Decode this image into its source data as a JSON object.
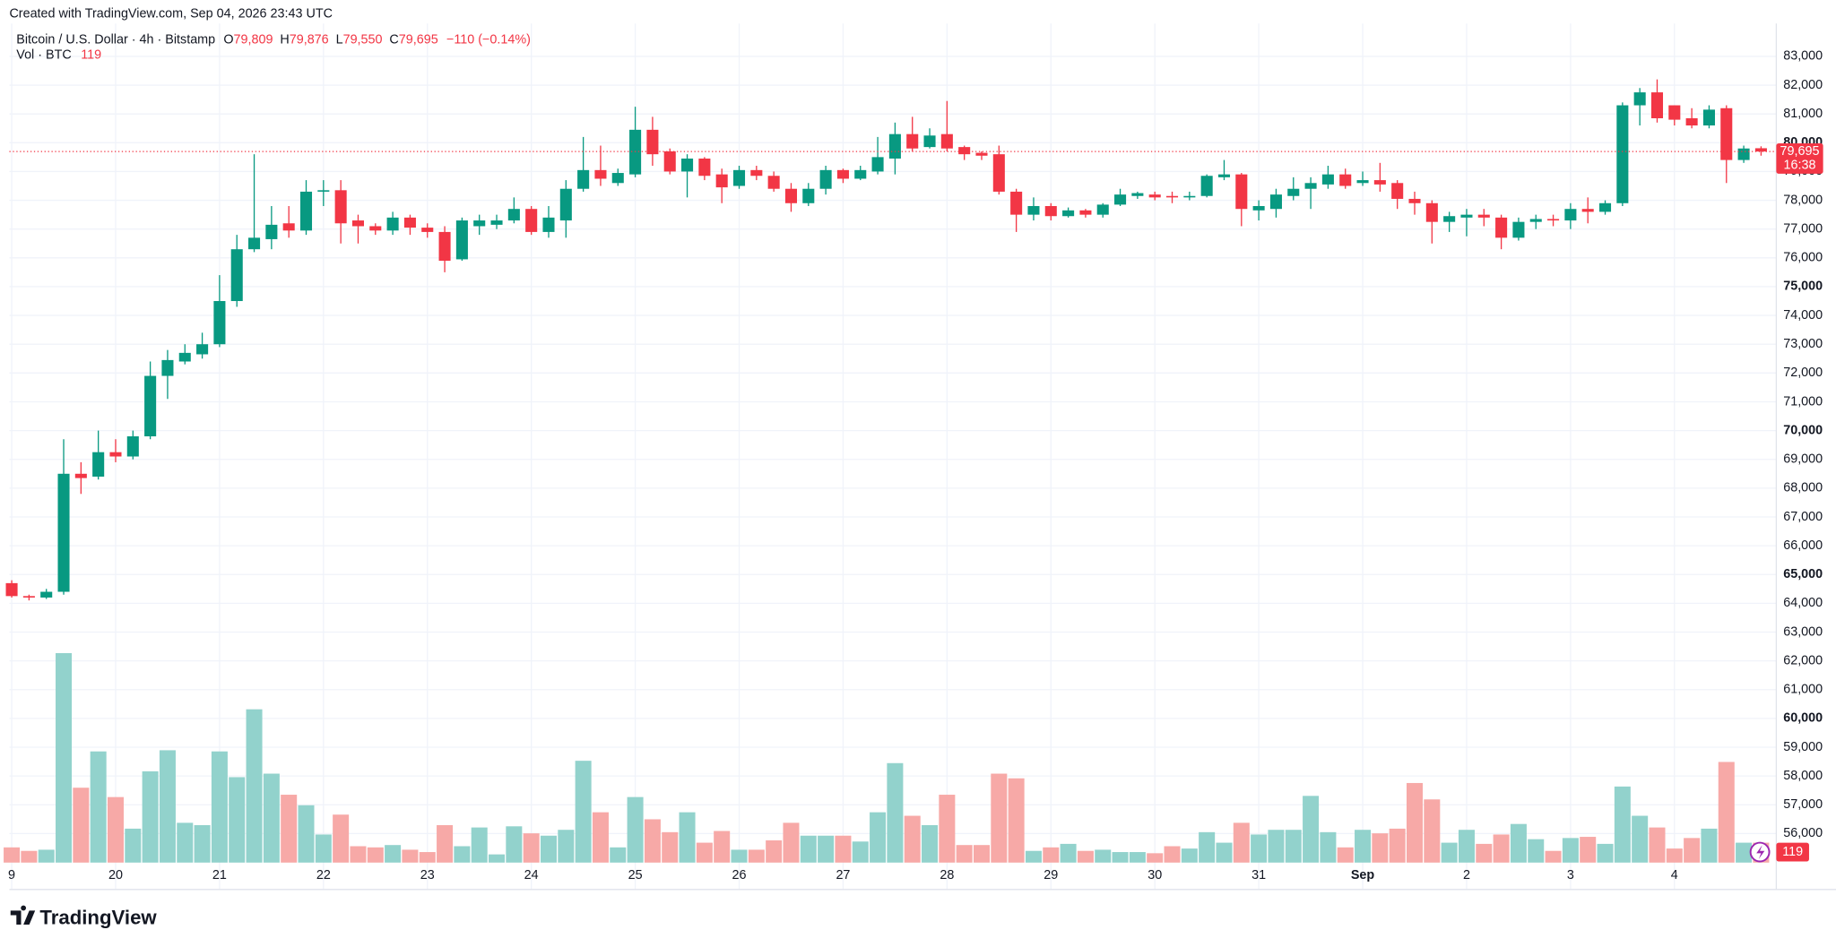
{
  "header": {
    "created": "Created with TradingView.com, Sep 04, 2026 23:43 UTC",
    "symbol": "Bitcoin / U.S. Dollar · 4h · Bitstamp",
    "ohlc": [
      {
        "key": "O",
        "value": "79,809"
      },
      {
        "key": "H",
        "value": "79,876"
      },
      {
        "key": "L",
        "value": "79,550"
      },
      {
        "key": "C",
        "value": "79,695"
      }
    ],
    "change": "−110 (−0.14%)",
    "volume_name": "Vol · BTC",
    "volume_value": "119"
  },
  "chart_data": {
    "type": "candlestick",
    "categories": [
      "9",
      null,
      null,
      null,
      null,
      null,
      "20",
      null,
      null,
      null,
      null,
      null,
      "21",
      null,
      null,
      null,
      null,
      null,
      "22",
      null,
      null,
      null,
      null,
      null,
      "23",
      null,
      null,
      null,
      null,
      null,
      "24",
      null,
      null,
      null,
      null,
      null,
      "25",
      null,
      null,
      null,
      null,
      null,
      "26",
      null,
      null,
      null,
      null,
      null,
      "27",
      null,
      null,
      null,
      null,
      null,
      "28",
      null,
      null,
      null,
      null,
      null,
      "29",
      null,
      null,
      null,
      null,
      null,
      "30",
      null,
      null,
      null,
      null,
      null,
      "31",
      null,
      null,
      null,
      null,
      null,
      "Sep",
      null,
      null,
      null,
      null,
      null,
      "2",
      null,
      null,
      null,
      null,
      null,
      "3",
      null,
      null,
      null,
      null,
      null,
      "4",
      null,
      null,
      null,
      null,
      null
    ],
    "open": [
      64700,
      64250,
      64200,
      64400,
      68500,
      68400,
      69250,
      69100,
      69800,
      71900,
      72400,
      72650,
      73000,
      74500,
      76300,
      76650,
      77200,
      76950,
      78300,
      78350,
      77300,
      77100,
      76950,
      77400,
      77050,
      76900,
      75950,
      77100,
      77150,
      77300,
      77700,
      76900,
      77300,
      78400,
      79050,
      78600,
      78900,
      80450,
      79700,
      79000,
      79450,
      78900,
      78500,
      79050,
      78850,
      78400,
      77900,
      78400,
      79050,
      78750,
      79000,
      79450,
      80300,
      79850,
      80300,
      79850,
      79650,
      79600,
      78300,
      77500,
      77800,
      77450,
      77650,
      77500,
      77850,
      78150,
      78200,
      78150,
      78100,
      78150,
      78800,
      78900,
      77650,
      77700,
      78150,
      78400,
      78550,
      78900,
      78600,
      78700,
      78600,
      78050,
      77900,
      77250,
      77400,
      77500,
      77400,
      76700,
      77250,
      77350,
      77300,
      77700,
      77600,
      77900,
      81300,
      81750,
      81300,
      80850,
      80600,
      81200,
      79400,
      79809
    ],
    "high": [
      64800,
      64300,
      64500,
      69700,
      68900,
      70000,
      69700,
      70000,
      72400,
      72800,
      73000,
      73400,
      75400,
      76800,
      79600,
      77800,
      77800,
      78700,
      78700,
      78700,
      77500,
      77200,
      77600,
      77500,
      77200,
      77100,
      77400,
      77500,
      77500,
      78100,
      77800,
      77800,
      78700,
      80200,
      79900,
      79100,
      81250,
      80900,
      79800,
      79600,
      79500,
      79100,
      79200,
      79200,
      79000,
      78600,
      78600,
      79200,
      79100,
      79200,
      80200,
      80700,
      80900,
      80500,
      81450,
      79900,
      79700,
      79900,
      78400,
      78100,
      77900,
      77750,
      77700,
      77900,
      78400,
      78300,
      78300,
      78300,
      78300,
      78900,
      79400,
      78950,
      78000,
      78400,
      78800,
      78800,
      79200,
      79100,
      79000,
      79300,
      78700,
      78300,
      78000,
      77600,
      77700,
      77700,
      77500,
      77400,
      77500,
      77500,
      77900,
      78100,
      78000,
      81400,
      81900,
      82200,
      81300,
      81200,
      81300,
      81300,
      79900,
      79876
    ],
    "low": [
      64200,
      64100,
      64150,
      64300,
      67800,
      68300,
      68900,
      69000,
      69700,
      71100,
      72300,
      72500,
      72900,
      74300,
      76200,
      76300,
      76700,
      76800,
      77800,
      76500,
      76500,
      76800,
      76800,
      76800,
      76700,
      75500,
      75900,
      76800,
      77000,
      77200,
      76800,
      76700,
      76700,
      78300,
      78500,
      78500,
      78800,
      79200,
      78900,
      78100,
      78700,
      77900,
      78400,
      78700,
      78300,
      77600,
      77800,
      78200,
      78600,
      78700,
      78900,
      78900,
      79700,
      79800,
      79700,
      79400,
      79400,
      78200,
      76900,
      77300,
      77300,
      77400,
      77400,
      77400,
      77800,
      78050,
      78000,
      77900,
      78000,
      78100,
      78700,
      77100,
      77300,
      77400,
      78000,
      77700,
      78400,
      78400,
      78500,
      78300,
      77700,
      77500,
      76500,
      76900,
      76750,
      77100,
      76300,
      76600,
      77000,
      77100,
      77000,
      77200,
      77500,
      77800,
      80600,
      80700,
      80600,
      80500,
      80500,
      78600,
      79300,
      79550
    ],
    "close": [
      64250,
      64200,
      64400,
      68500,
      68350,
      69250,
      69100,
      69800,
      71900,
      72450,
      72700,
      73000,
      74500,
      76300,
      76700,
      77150,
      76950,
      78300,
      78350,
      77200,
      77100,
      76950,
      77400,
      77050,
      76900,
      75900,
      77300,
      77300,
      77300,
      77700,
      76900,
      77400,
      78400,
      79050,
      78750,
      78950,
      80450,
      79600,
      79000,
      79450,
      78850,
      78450,
      79050,
      78850,
      78400,
      77900,
      78400,
      79050,
      78750,
      79050,
      79500,
      80300,
      79800,
      80250,
      79800,
      79600,
      79550,
      78300,
      77500,
      77800,
      77450,
      77650,
      77500,
      77850,
      78200,
      78250,
      78100,
      78100,
      78150,
      78850,
      78900,
      77700,
      77800,
      78200,
      78400,
      78600,
      78900,
      78500,
      78700,
      78550,
      78050,
      77900,
      77250,
      77450,
      77500,
      77400,
      76700,
      77250,
      77350,
      77300,
      77700,
      77600,
      77900,
      81300,
      81750,
      80850,
      80800,
      80600,
      81150,
      79400,
      79800,
      79695
    ],
    "volume": [
      91,
      70,
      77,
      1253,
      448,
      665,
      392,
      203,
      546,
      672,
      238,
      224,
      665,
      511,
      917,
      532,
      406,
      343,
      168,
      287,
      98,
      91,
      105,
      77,
      63,
      224,
      98,
      210,
      49,
      217,
      175,
      161,
      196,
      609,
      301,
      91,
      392,
      259,
      182,
      301,
      119,
      189,
      77,
      77,
      133,
      238,
      161,
      161,
      161,
      126,
      301,
      595,
      280,
      224,
      406,
      105,
      105,
      532,
      504,
      70,
      91,
      112,
      70,
      77,
      63,
      63,
      56,
      98,
      84,
      182,
      119,
      238,
      168,
      196,
      196,
      399,
      182,
      91,
      196,
      175,
      203,
      476,
      378,
      119,
      196,
      112,
      168,
      231,
      140,
      70,
      147,
      154,
      112,
      455,
      280,
      210,
      84,
      147,
      203,
      602,
      119,
      119
    ],
    "ylim": [
      54870,
      84140
    ],
    "yticks": [
      {
        "value": 56000,
        "label": "56,000"
      },
      {
        "value": 57000,
        "label": "57,000"
      },
      {
        "value": 58000,
        "label": "58,000"
      },
      {
        "value": 59000,
        "label": "59,000"
      },
      {
        "value": 60000,
        "label": "60,000"
      },
      {
        "value": 61000,
        "label": "61,000"
      },
      {
        "value": 62000,
        "label": "62,000"
      },
      {
        "value": 63000,
        "label": "63,000"
      },
      {
        "value": 64000,
        "label": "64,000"
      },
      {
        "value": 65000,
        "label": "65,000"
      },
      {
        "value": 66000,
        "label": "66,000"
      },
      {
        "value": 67000,
        "label": "67,000"
      },
      {
        "value": 68000,
        "label": "68,000"
      },
      {
        "value": 69000,
        "label": "69,000"
      },
      {
        "value": 70000,
        "label": "70,000"
      },
      {
        "value": 71000,
        "label": "71,000"
      },
      {
        "value": 72000,
        "label": "72,000"
      },
      {
        "value": 73000,
        "label": "73,000"
      },
      {
        "value": 74000,
        "label": "74,000"
      },
      {
        "value": 75000,
        "label": "75,000"
      },
      {
        "value": 76000,
        "label": "76,000"
      },
      {
        "value": 77000,
        "label": "77,000"
      },
      {
        "value": 78000,
        "label": "78,000"
      },
      {
        "value": 79000,
        "label": "79,000"
      },
      {
        "value": 80000,
        "label": "80,000"
      },
      {
        "value": 81000,
        "label": "81,000"
      },
      {
        "value": 82000,
        "label": "82,000"
      },
      {
        "value": 83000,
        "label": "83,000"
      }
    ],
    "grid": true,
    "up_color": "#089981",
    "down_color": "#f23645",
    "volume_up_color": "#92d2cc",
    "volume_down_color": "#f7a9a7",
    "last_price_label": "79,695",
    "countdown": "16:38",
    "last_volume_label": "119"
  },
  "footer": {
    "brand": "TradingView"
  }
}
